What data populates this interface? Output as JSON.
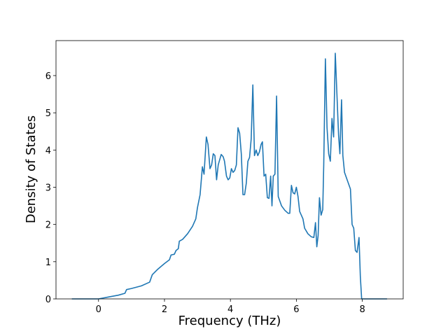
{
  "chart_data": {
    "type": "line",
    "x_label": "Frequency (THz)",
    "y_label": "Density of States",
    "color": "#1f77b4",
    "xlim": [
      -1.29,
      9.24
    ],
    "ylim": [
      0,
      6.94
    ],
    "xticks": [
      0,
      2,
      4,
      6,
      8
    ],
    "yticks": [
      0,
      1,
      2,
      3,
      4,
      5,
      6
    ],
    "x": [
      -0.81,
      0,
      0.3,
      0.6,
      0.8,
      0.85,
      1.0,
      1.3,
      1.55,
      1.63,
      1.8,
      2.0,
      2.15,
      2.2,
      2.3,
      2.35,
      2.42,
      2.45,
      2.55,
      2.7,
      2.85,
      2.95,
      3.0,
      3.08,
      3.15,
      3.2,
      3.27,
      3.32,
      3.38,
      3.43,
      3.48,
      3.53,
      3.58,
      3.63,
      3.72,
      3.78,
      3.82,
      3.88,
      3.93,
      3.98,
      4.03,
      4.08,
      4.13,
      4.18,
      4.23,
      4.28,
      4.33,
      4.38,
      4.43,
      4.48,
      4.53,
      4.58,
      4.63,
      4.68,
      4.73,
      4.78,
      4.83,
      4.88,
      4.93,
      4.97,
      5.02,
      5.07,
      5.12,
      5.17,
      5.22,
      5.26,
      5.3,
      5.35,
      5.4,
      5.45,
      5.55,
      5.65,
      5.75,
      5.8,
      5.85,
      5.9,
      5.95,
      6.0,
      6.05,
      6.1,
      6.2,
      6.25,
      6.35,
      6.45,
      6.53,
      6.58,
      6.62,
      6.66,
      6.7,
      6.75,
      6.8,
      6.83,
      6.88,
      6.93,
      6.98,
      7.03,
      7.08,
      7.13,
      7.18,
      7.23,
      7.28,
      7.32,
      7.37,
      7.41,
      7.46,
      7.54,
      7.64,
      7.69,
      7.74,
      7.79,
      7.84,
      7.9,
      7.94,
      7.98,
      8.75
    ],
    "values": [
      0,
      0,
      0.05,
      0.1,
      0.15,
      0.25,
      0.28,
      0.35,
      0.45,
      0.65,
      0.8,
      0.95,
      1.05,
      1.18,
      1.2,
      1.3,
      1.35,
      1.55,
      1.6,
      1.75,
      1.95,
      2.15,
      2.45,
      2.8,
      3.55,
      3.35,
      4.35,
      4.15,
      3.5,
      3.6,
      3.9,
      3.85,
      3.2,
      3.6,
      3.88,
      3.82,
      3.7,
      3.3,
      3.2,
      3.25,
      3.5,
      3.4,
      3.45,
      3.6,
      4.6,
      4.45,
      3.9,
      2.8,
      2.8,
      3.1,
      3.7,
      3.8,
      4.3,
      5.75,
      3.85,
      4.0,
      3.85,
      3.95,
      4.15,
      4.22,
      3.3,
      3.35,
      2.72,
      2.7,
      3.3,
      2.5,
      3.3,
      3.35,
      5.45,
      2.75,
      2.5,
      2.38,
      2.3,
      2.3,
      3.05,
      2.85,
      2.82,
      3.0,
      2.75,
      2.35,
      2.15,
      1.9,
      1.75,
      1.67,
      1.65,
      2.05,
      1.4,
      1.7,
      2.72,
      2.25,
      2.4,
      3.6,
      6.45,
      4.6,
      3.9,
      3.7,
      4.85,
      4.35,
      6.6,
      5.5,
      4.4,
      3.9,
      5.35,
      3.85,
      3.4,
      3.2,
      2.95,
      2.0,
      1.9,
      1.3,
      1.25,
      1.65,
      0.6,
      0,
      0
    ]
  }
}
